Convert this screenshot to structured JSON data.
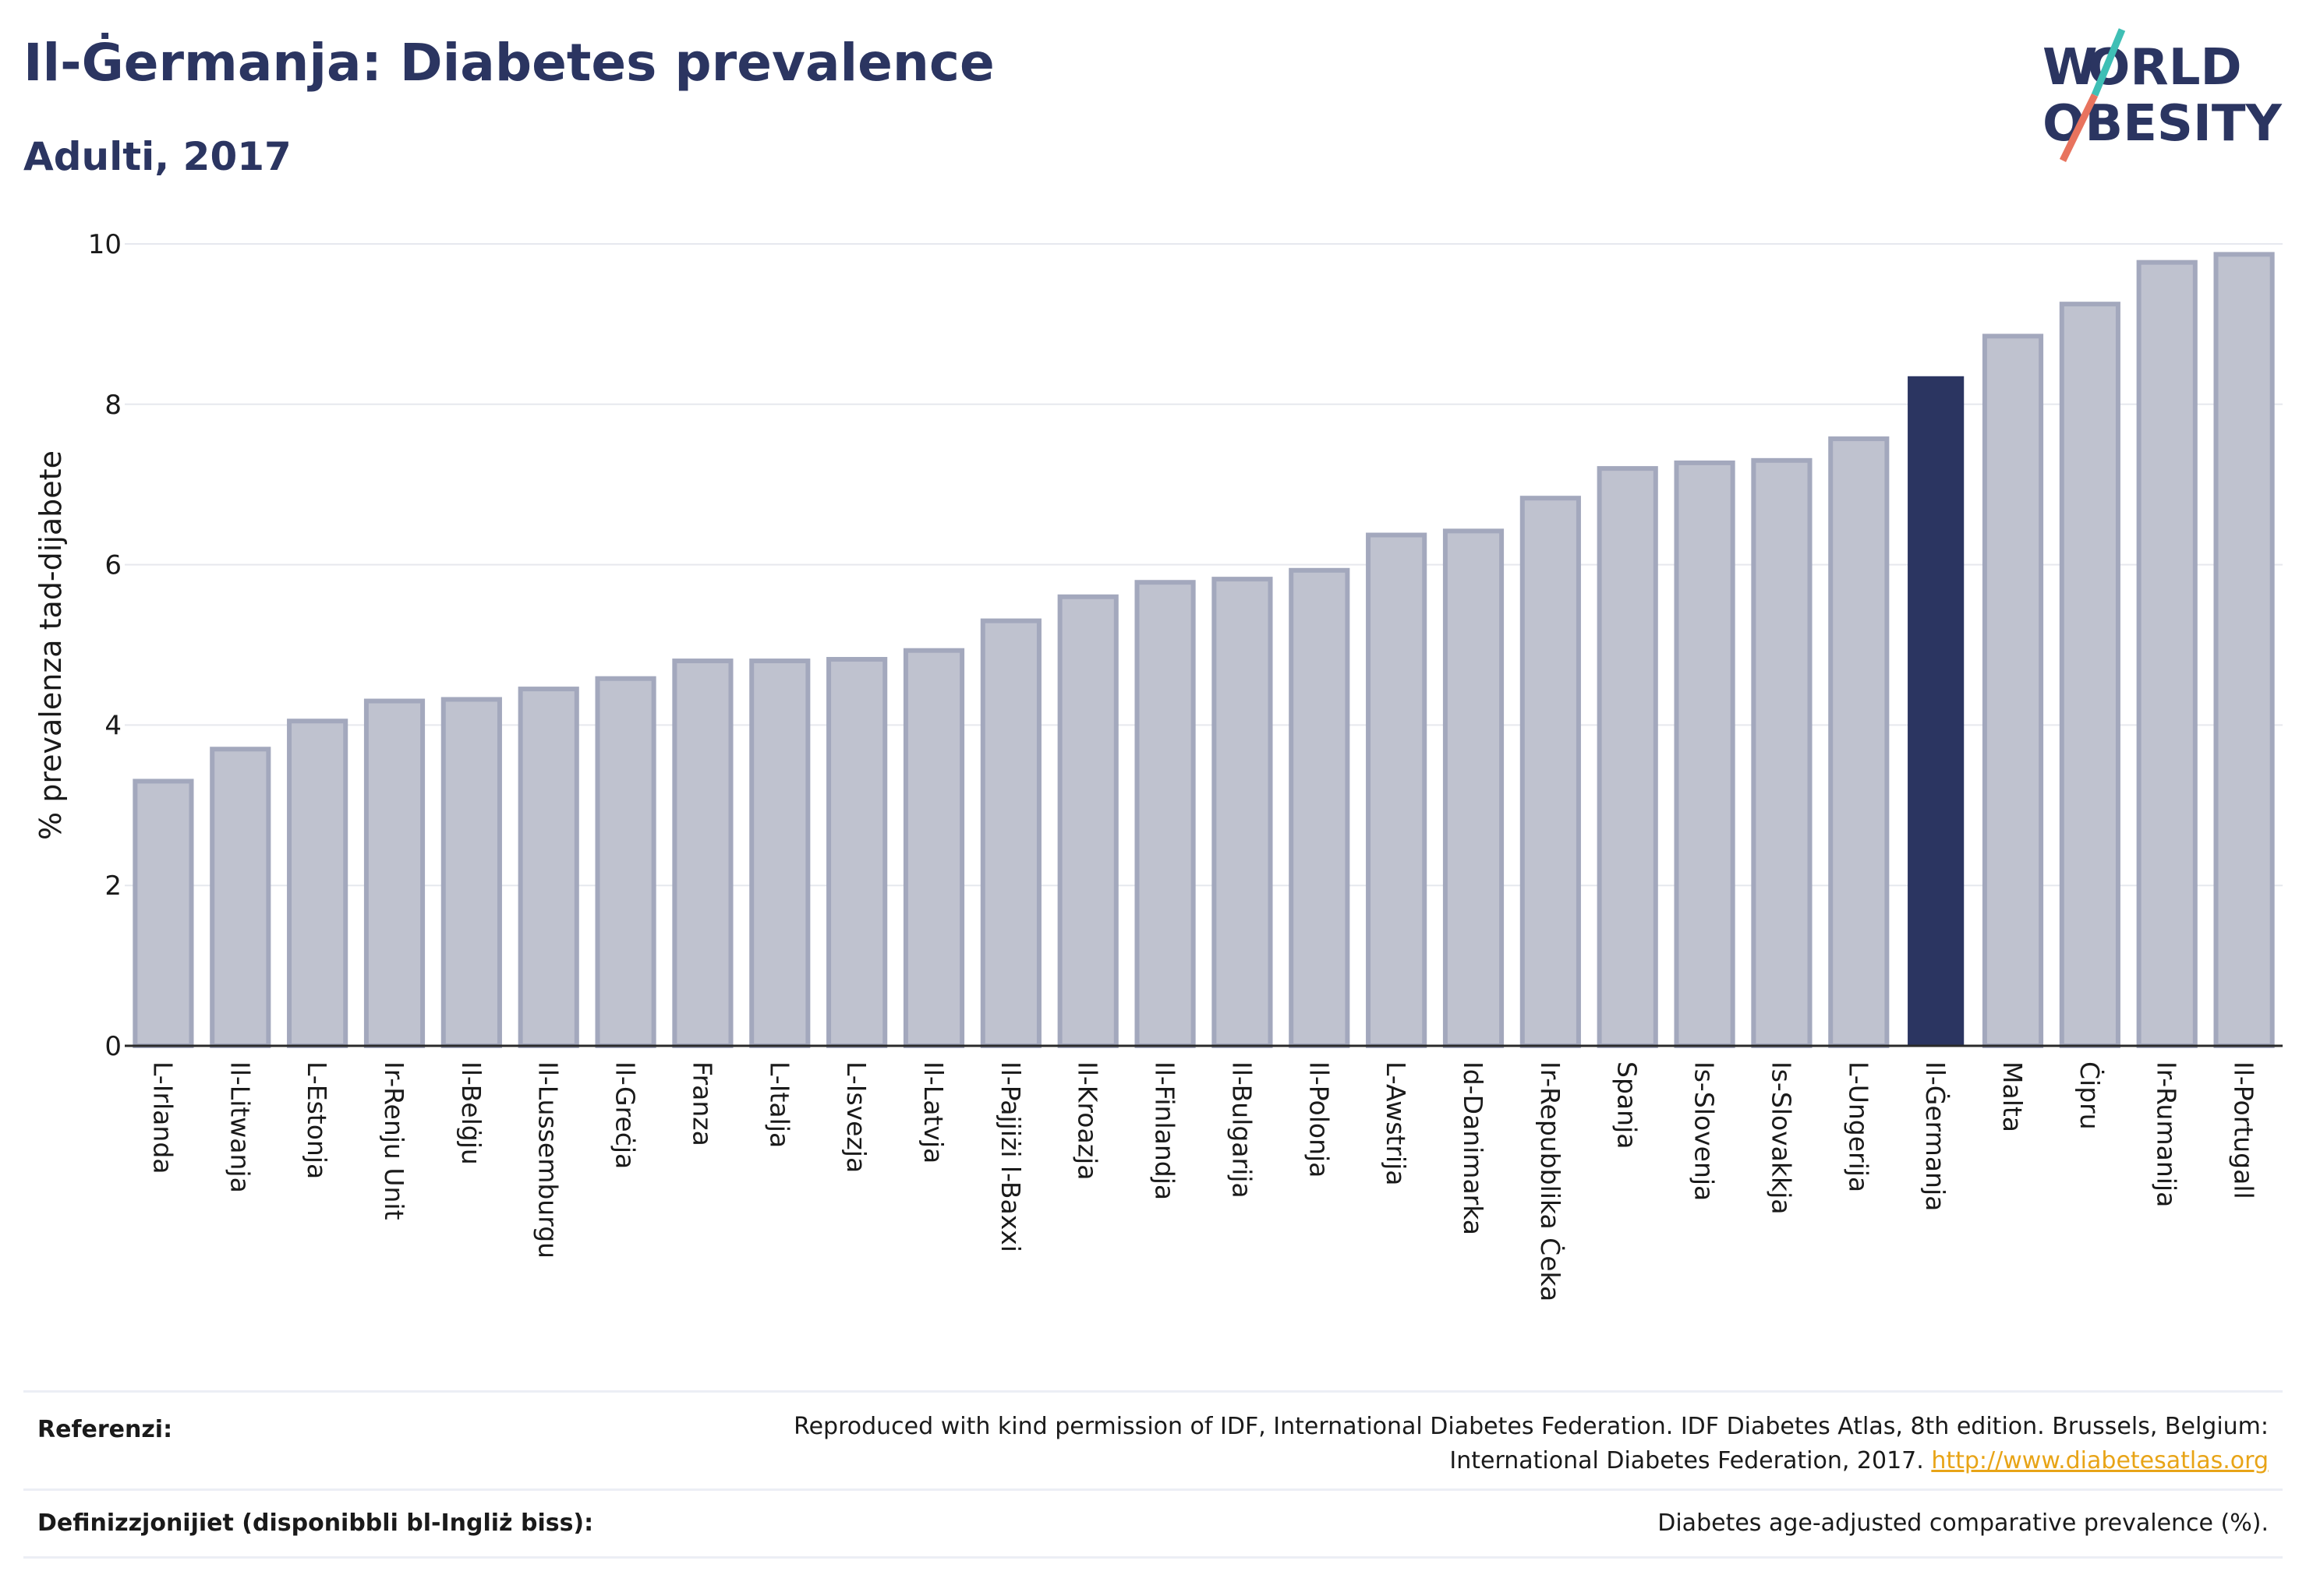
{
  "header": {
    "title": "Il-Ġermanja: Diabetes prevalence",
    "subtitle": "Adulti, 2017"
  },
  "logo": {
    "line1": "WORLD",
    "line2": "OBESITY"
  },
  "colors": {
    "highlight": "#2b3561",
    "bar_fill": "#bfc2cf",
    "bar_stroke": "#a3a8bd",
    "grid": "#e6e8ee",
    "logo_teal": "#3fbfb5",
    "logo_coral": "#e8735e"
  },
  "chart_data": {
    "type": "bar",
    "title": "Il-Ġermanja: Diabetes prevalence",
    "subtitle": "Adulti, 2017",
    "xlabel": "",
    "ylabel": "% prevalenza tad-dijabete",
    "ylim": [
      0,
      10
    ],
    "yticks": [
      0,
      2,
      4,
      6,
      8,
      10
    ],
    "grid": true,
    "highlight": "Il-Ġermanja",
    "categories": [
      "L-Irlanda",
      "Il-Litwanja",
      "L-Estonja",
      "Ir-Renju Unit",
      "Il-Belġju",
      "Il-Lussemburgu",
      "Il-Greċja",
      "Franza",
      "L-Italja",
      "L-Isvezja",
      "Il-Latvja",
      "Il-Pajjiżi l-Baxxi",
      "Il-Kroazja",
      "Il-Finlandja",
      "Il-Bulgarija",
      "Il-Polonja",
      "L-Awstrija",
      "Id-Danimarka",
      "Ir-Repubblika Ċeka",
      "Spanja",
      "Is-Slovenja",
      "Is-Slovakkja",
      "L-Ungerija",
      "Il-Ġermanja",
      "Malta",
      "Ċipru",
      "Ir-Rumanija",
      "Il-Portugall"
    ],
    "values": [
      3.3,
      3.7,
      4.05,
      4.3,
      4.32,
      4.45,
      4.58,
      4.8,
      4.8,
      4.82,
      4.93,
      5.3,
      5.6,
      5.78,
      5.82,
      5.93,
      6.37,
      6.42,
      6.83,
      7.2,
      7.27,
      7.3,
      7.57,
      8.35,
      8.85,
      9.25,
      9.77,
      9.87
    ]
  },
  "references": {
    "label": "Referenzi:",
    "text": "Reproduced with kind permission of IDF, International Diabetes Federation. IDF Diabetes Atlas, 8th edition. Brussels, Belgium: International Diabetes Federation, 2017.",
    "link": "http://www.diabetesatlas.org"
  },
  "definitions": {
    "label": "Definizzjonijiet (disponibbli bl-Ingliż biss):",
    "text": "Diabetes age-adjusted comparative prevalence (%)."
  }
}
